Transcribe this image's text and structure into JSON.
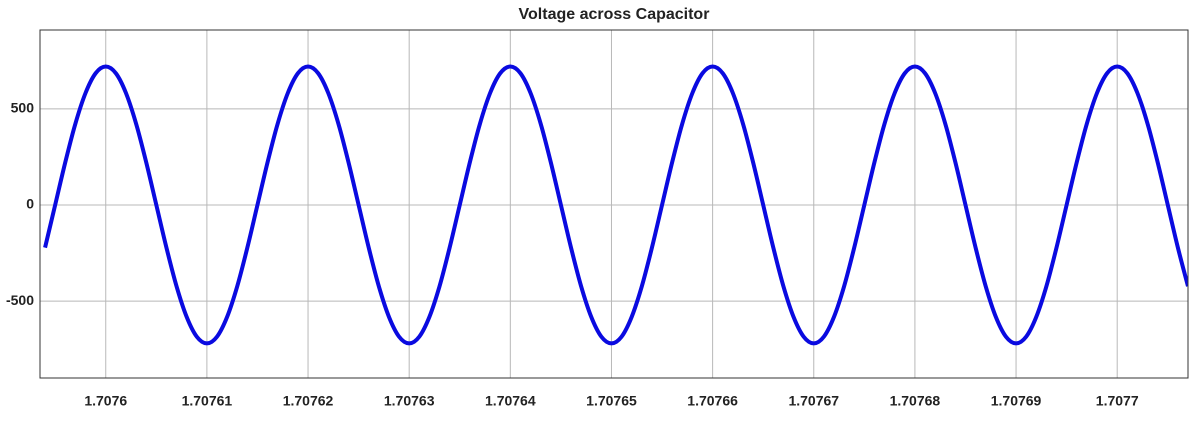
{
  "chart_data": {
    "type": "line",
    "title": "Voltage across Capacitor",
    "x": [
      1.707594,
      1.707595,
      1.707596,
      1.707597,
      1.707598,
      1.707599,
      1.7076,
      1.707601,
      1.707602,
      1.707603,
      1.707604,
      1.707605,
      1.707606,
      1.707607,
      1.707608,
      1.707609,
      1.70761,
      1.707611,
      1.707612,
      1.707613,
      1.707614,
      1.707615,
      1.707616,
      1.707617,
      1.707618,
      1.707619,
      1.70762,
      1.707621,
      1.707622,
      1.707623,
      1.707624,
      1.707625,
      1.707626,
      1.707627,
      1.707628,
      1.707629,
      1.70763,
      1.707631,
      1.707632,
      1.707633,
      1.707634,
      1.707635,
      1.707636,
      1.707637,
      1.707638,
      1.707639,
      1.70764,
      1.707641,
      1.707642,
      1.707643,
      1.707644,
      1.707645,
      1.707646,
      1.707647,
      1.707648,
      1.707649,
      1.70765,
      1.707651,
      1.707652,
      1.707653,
      1.707654,
      1.707655,
      1.707656,
      1.707657,
      1.707658,
      1.707659,
      1.70766,
      1.707661,
      1.707662,
      1.707663,
      1.707664,
      1.707665,
      1.707666,
      1.707667,
      1.707668,
      1.707669,
      1.70767,
      1.707671,
      1.707672,
      1.707673,
      1.707674,
      1.707675,
      1.707676,
      1.707677,
      1.707678,
      1.707679,
      1.70768,
      1.707681,
      1.707682,
      1.707683,
      1.707684,
      1.707685,
      1.707686,
      1.707687,
      1.707688,
      1.707689,
      1.70769,
      1.707691,
      1.707692,
      1.707693,
      1.707694,
      1.707695,
      1.707696,
      1.707697,
      1.707698,
      1.707699,
      1.7077,
      1.707701,
      1.707702,
      1.707703,
      1.707704,
      1.707705,
      1.707706,
      1.707707
    ],
    "series": [
      {
        "color": "#0a0ae0",
        "values": [
          -222,
          0,
          222,
          423,
          582,
          685,
          720,
          685,
          582,
          423,
          222,
          0,
          -222,
          -423,
          -582,
          -685,
          -720,
          -685,
          -582,
          -423,
          -222,
          0,
          222,
          423,
          582,
          685,
          720,
          685,
          582,
          423,
          222,
          0,
          -222,
          -423,
          -582,
          -685,
          -720,
          -685,
          -582,
          -423,
          -222,
          0,
          222,
          423,
          582,
          685,
          720,
          685,
          582,
          423,
          222,
          0,
          -222,
          -423,
          -582,
          -685,
          -720,
          -685,
          -582,
          -423,
          -222,
          0,
          222,
          423,
          582,
          685,
          720,
          685,
          582,
          423,
          222,
          0,
          -222,
          -423,
          -582,
          -685,
          -720,
          -685,
          -582,
          -423,
          -222,
          0,
          222,
          423,
          582,
          685,
          720,
          685,
          582,
          423,
          222,
          0,
          -222,
          -423,
          -582,
          -685,
          -720,
          -685,
          -582,
          -423,
          -222,
          0,
          222,
          423,
          582,
          685,
          720,
          685,
          582,
          423,
          222,
          0,
          -222,
          -423
        ]
      }
    ],
    "xlim": [
      1.7075935,
      1.707707
    ],
    "xticks": [
      1.7076,
      1.70761,
      1.70762,
      1.70763,
      1.70764,
      1.70765,
      1.70766,
      1.70767,
      1.70768,
      1.70769,
      1.7077
    ],
    "ylim": [
      -900,
      910
    ],
    "yticks": [
      -500,
      0,
      500
    ],
    "grid": true
  }
}
